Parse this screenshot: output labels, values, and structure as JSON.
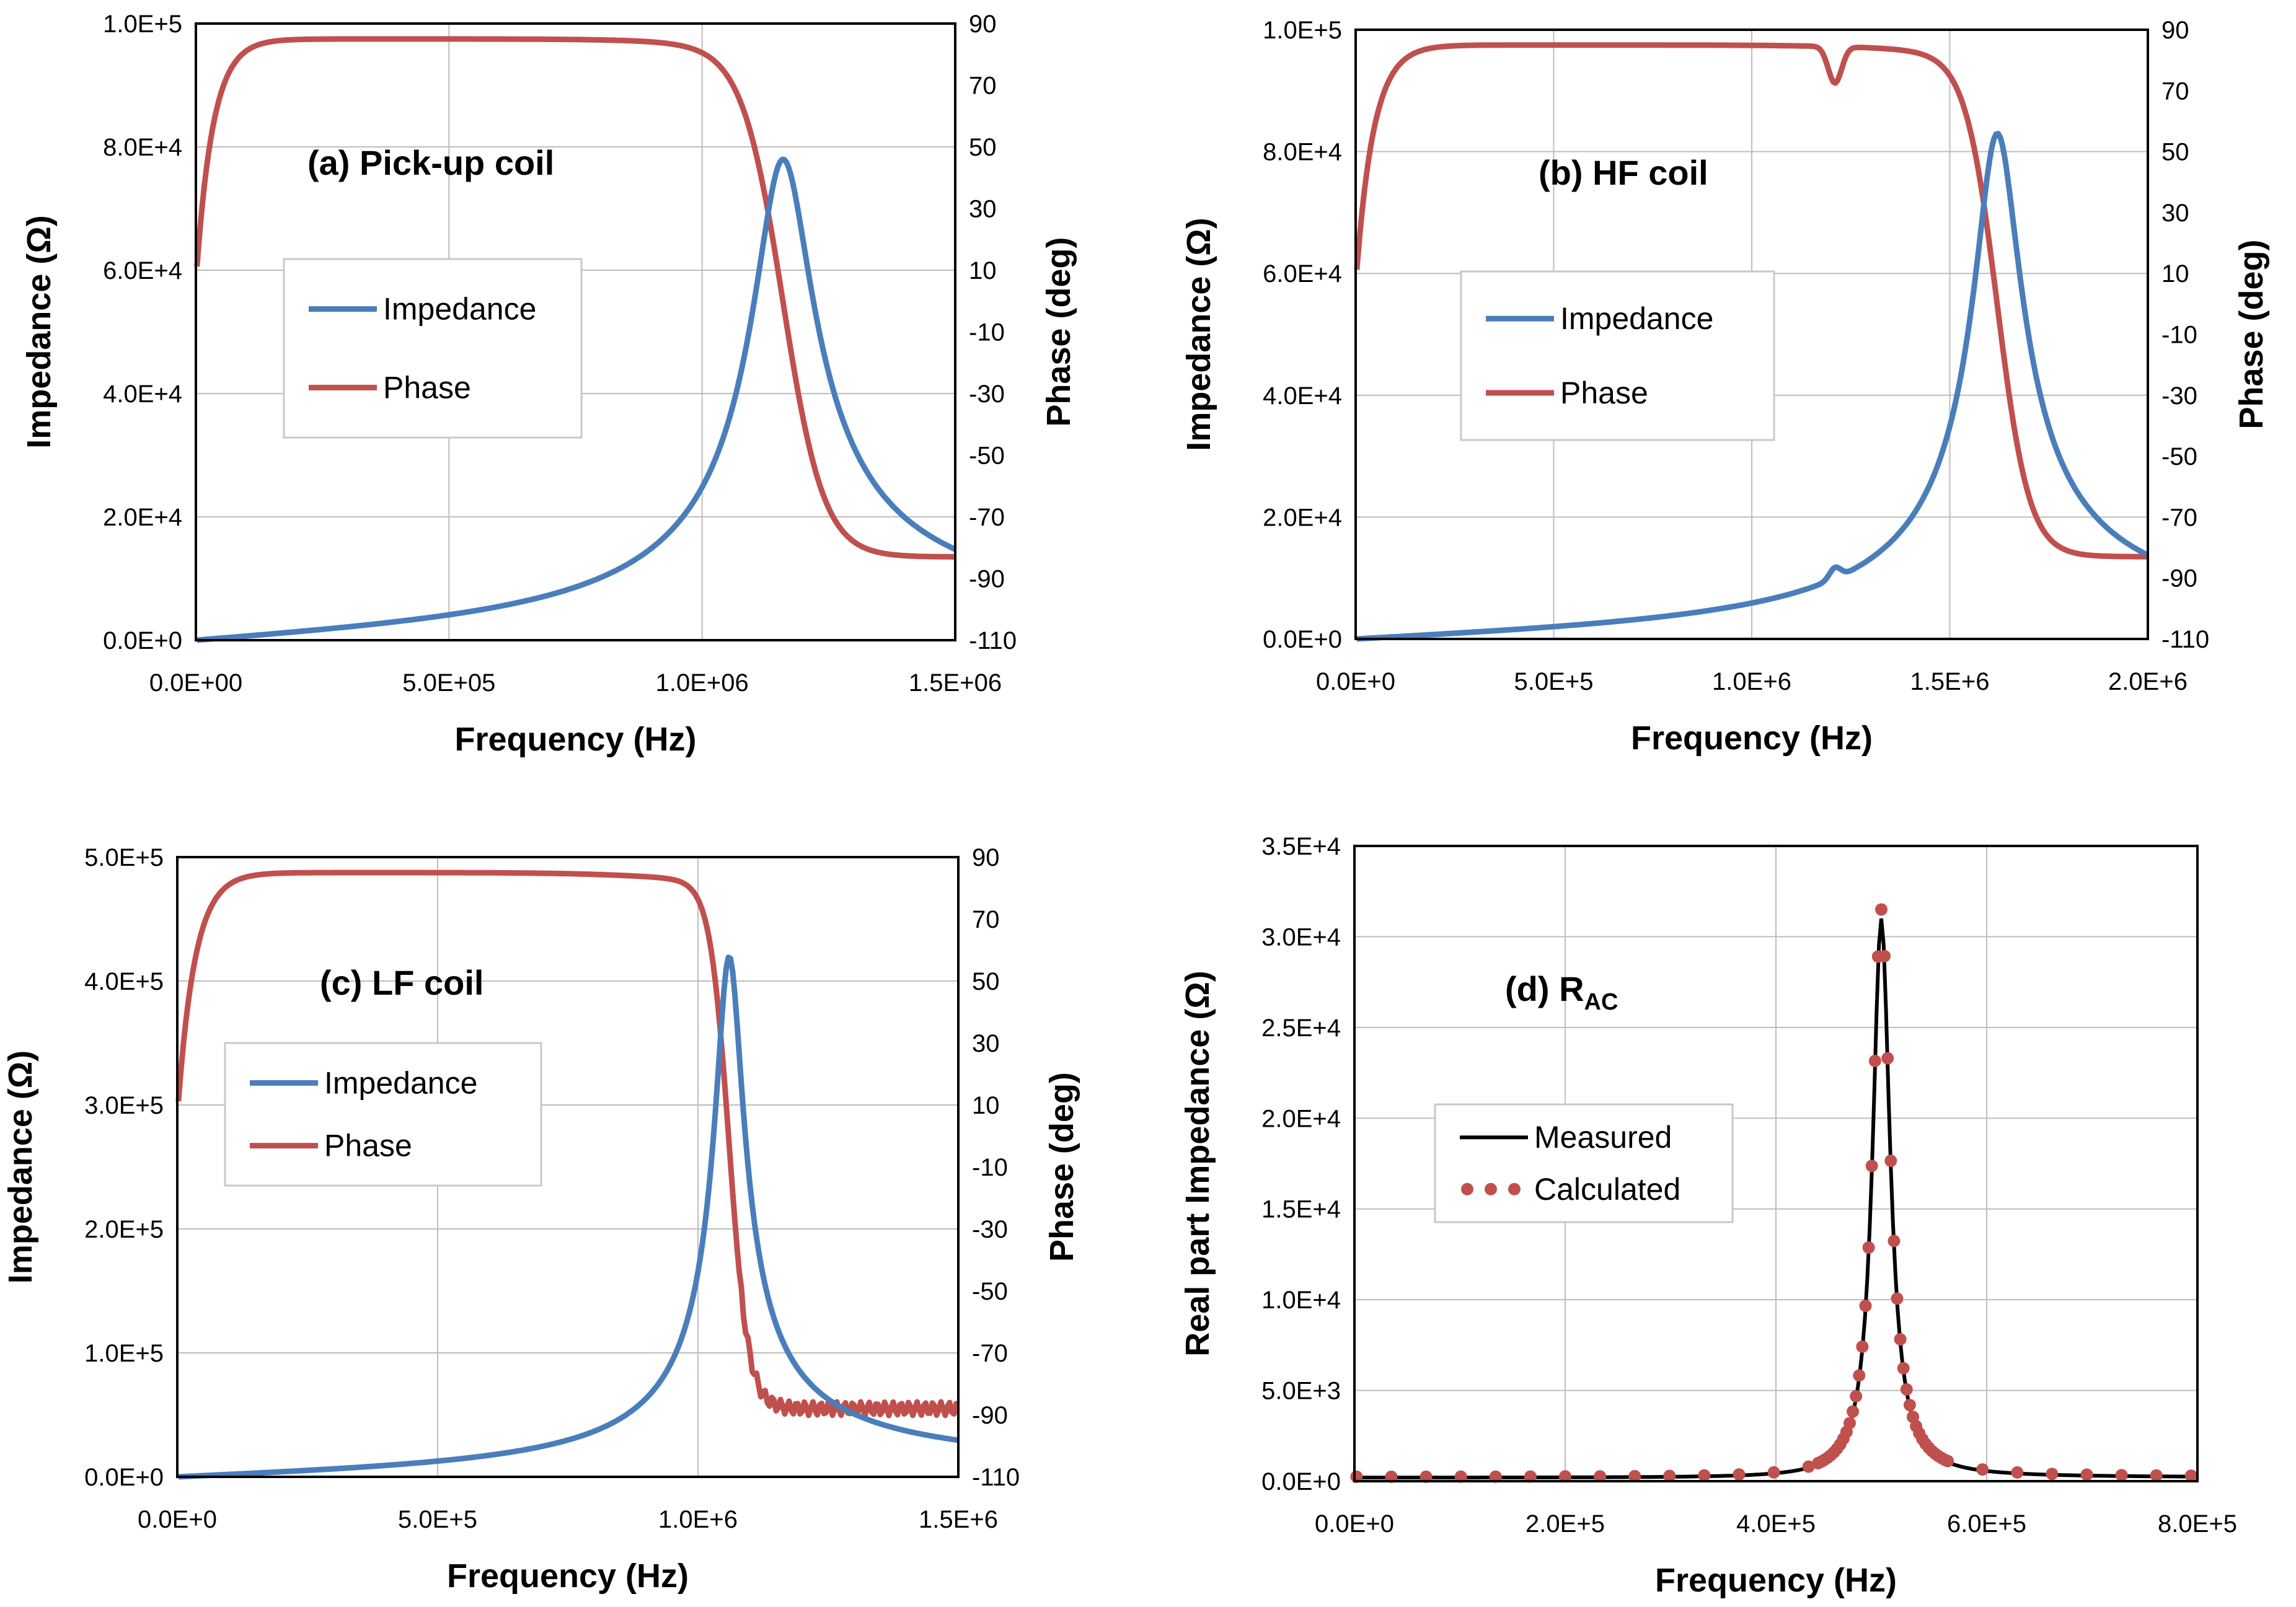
{
  "colors": {
    "impedance": "#4a7ebb",
    "phase": "#c0504d",
    "measured": "#000000",
    "calculated": "#c0504d"
  },
  "chart_data": [
    {
      "id": "a",
      "type": "line",
      "title": "(a) Pick-up coil",
      "xlabel": "Frequency (Hz)",
      "ylabel": "Impedance (Ω)",
      "y2label": "Phase (deg)",
      "xlim": [
        0,
        1500000
      ],
      "ylim": [
        0,
        100000
      ],
      "y2lim": [
        -110,
        90
      ],
      "xticks": [
        "0.0E+00",
        "5.0E+05",
        "1.0E+06",
        "1.5E+06"
      ],
      "yticks": [
        "0.0E+0",
        "2.0E+4",
        "4.0E+4",
        "6.0E+4",
        "8.0E+4",
        "1.0E+5"
      ],
      "y2ticks": [
        "90",
        "70",
        "50",
        "30",
        "10",
        "-10",
        "-30",
        "-50",
        "-70",
        "-90",
        "-110"
      ],
      "legend": [
        "Impedance",
        "Phase"
      ],
      "legend_position": "center-left",
      "resonance": {
        "f0": 1160000,
        "peak": 78000,
        "Q": 10,
        "phase_low": -83
      },
      "series": [
        {
          "name": "Impedance",
          "x": [
            0,
            250000,
            500000,
            750000,
            1000000,
            1100000,
            1140000,
            1160000,
            1180000,
            1250000,
            1400000,
            1500000
          ],
          "values": [
            0,
            1000,
            2500,
            5500,
            13000,
            30000,
            60000,
            78000,
            60000,
            20000,
            10000,
            6800
          ]
        },
        {
          "name": "Phase",
          "x": [
            0,
            50000,
            150000,
            500000,
            1000000,
            1100000,
            1160000,
            1250000,
            1400000,
            1500000
          ],
          "values": [
            8,
            65,
            83,
            85,
            80,
            68,
            0,
            -70,
            -81,
            -83
          ]
        }
      ]
    },
    {
      "id": "b",
      "type": "line",
      "title": "(b) HF coil",
      "xlabel": "Frequency (Hz)",
      "ylabel": "Impedance (Ω)",
      "y2label": "Phase (deg)",
      "xlim": [
        0,
        2000000
      ],
      "ylim": [
        0,
        100000
      ],
      "y2lim": [
        -110,
        90
      ],
      "xticks": [
        "0.0E+0",
        "5.0E+5",
        "1.0E+6",
        "1.5E+6",
        "2.0E+6"
      ],
      "yticks": [
        "0.0E+0",
        "2.0E+4",
        "4.0E+4",
        "6.0E+4",
        "8.0E+4",
        "1.0E+5"
      ],
      "y2ticks": [
        "90",
        "70",
        "50",
        "30",
        "10",
        "-10",
        "-30",
        "-50",
        "-70",
        "-90",
        "-110"
      ],
      "legend": [
        "Impedance",
        "Phase"
      ],
      "legend_position": "center-left",
      "resonance": {
        "f0": 1620000,
        "peak": 83000,
        "Q": 14,
        "phase_low": -83,
        "dip_f": 1210000,
        "dip_depth": 12
      },
      "series": [
        {
          "name": "Impedance",
          "x": [
            0,
            500000,
            1000000,
            1200000,
            1500000,
            1620000,
            1700000,
            2000000
          ],
          "values": [
            0,
            1500,
            3700,
            6000,
            17000,
            83000,
            25000,
            7500
          ]
        },
        {
          "name": "Phase",
          "x": [
            0,
            50000,
            200000,
            1000000,
            1210000,
            1500000,
            1620000,
            1750000,
            2000000
          ],
          "values": [
            6,
            70,
            83,
            85,
            73,
            79,
            0,
            -72,
            -83
          ]
        }
      ]
    },
    {
      "id": "c",
      "type": "line",
      "title": "(c) LF coil",
      "xlabel": "Frequency (Hz)",
      "ylabel": "Impedance (Ω)",
      "y2label": "Phase (deg)",
      "xlim": [
        0,
        1500000
      ],
      "ylim": [
        0,
        500000
      ],
      "y2lim": [
        -110,
        90
      ],
      "xticks": [
        "0.0E+0",
        "5.0E+5",
        "1.0E+6",
        "1.5E+6"
      ],
      "yticks": [
        "0.0E+0",
        "1.0E+5",
        "2.0E+5",
        "3.0E+5",
        "4.0E+5",
        "5.0E+5"
      ],
      "y2ticks": [
        "90",
        "70",
        "50",
        "30",
        "10",
        "-10",
        "-30",
        "-50",
        "-70",
        "-90",
        "-110"
      ],
      "legend": [
        "Impedance",
        "Phase"
      ],
      "legend_position": "center-left",
      "resonance": {
        "f0": 1060000,
        "peak": 420000,
        "Q": 20,
        "phase_low": -88
      },
      "series": [
        {
          "name": "Impedance",
          "x": [
            0,
            500000,
            800000,
            1000000,
            1040000,
            1060000,
            1080000,
            1200000,
            1500000
          ],
          "values": [
            0,
            7000,
            25000,
            70000,
            270000,
            420000,
            180000,
            40000,
            17000
          ]
        },
        {
          "name": "Phase",
          "x": [
            0,
            50000,
            200000,
            500000,
            900000,
            1000000,
            1060000,
            1120000,
            1300000,
            1500000
          ],
          "values": [
            8,
            72,
            85,
            86,
            82,
            65,
            0,
            -75,
            -84,
            -88
          ]
        }
      ]
    },
    {
      "id": "d",
      "type": "line",
      "title": "(d) R",
      "title_sub": "AC",
      "xlabel": "Frequency (Hz)",
      "ylabel": "Real part Impedance (Ω)",
      "xlim": [
        0,
        800000
      ],
      "ylim": [
        0,
        35000
      ],
      "xticks": [
        "0.0E+0",
        "2.0E+5",
        "4.0E+5",
        "6.0E+5",
        "8.0E+5"
      ],
      "yticks": [
        "0.0E+0",
        "5.0E+3",
        "1.0E+4",
        "1.5E+4",
        "2.0E+4",
        "2.5E+4",
        "3.0E+4",
        "3.5E+4"
      ],
      "legend": [
        "Measured",
        "Calculated"
      ],
      "legend_position": "center-left",
      "resonance": {
        "f0": 500000,
        "peak": 31000,
        "Q": 25,
        "calc_peak": 31500,
        "calc_points": 58
      },
      "series": [
        {
          "name": "Measured",
          "x": [
            0,
            400000,
            450000,
            480000,
            500000,
            520000,
            550000,
            600000,
            800000
          ],
          "values": [
            300,
            800,
            2500,
            12000,
            31000,
            12000,
            2500,
            800,
            200
          ]
        },
        {
          "name": "Calculated",
          "x": [
            0,
            400000,
            450000,
            480000,
            500000,
            520000,
            550000,
            600000,
            800000
          ],
          "values": [
            300,
            800,
            2600,
            12500,
            31500,
            12500,
            2600,
            800,
            200
          ]
        }
      ]
    }
  ]
}
